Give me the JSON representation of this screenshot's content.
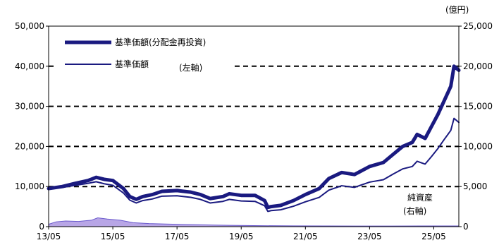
{
  "chart_data": {
    "type": "line",
    "grid": true,
    "legend": "top-left",
    "y_left": {
      "ylim": [
        0,
        50000
      ],
      "ticks": [
        "0",
        "10,000",
        "20,000",
        "30,000",
        "40,000",
        "50,000"
      ],
      "note": "(左軸)"
    },
    "y_right": {
      "unit": "(億円)",
      "ylim": [
        0,
        25000
      ],
      "ticks": [
        "0",
        "5,000",
        "10,000",
        "15,000",
        "20,000",
        "25,000"
      ],
      "note_line1": "純資産",
      "note_line2": "(右軸)"
    },
    "x_ticks": [
      "13/05",
      "15/05",
      "17/05",
      "19/05",
      "21/05",
      "23/05",
      "25/05"
    ],
    "x_tick_values": [
      2013.37,
      2015.37,
      2017.37,
      2019.37,
      2021.37,
      2023.37,
      2025.37
    ],
    "xlim": [
      2013.37,
      2026.15
    ],
    "colors": {
      "line": "#1a1a80",
      "area_fill": "#b8a6e6",
      "area_stroke": "#6a5acd",
      "grid": "#000000"
    },
    "series": [
      {
        "name": "基準価額(分配金再投資)",
        "axis": "left",
        "x": [
          2013.37,
          2013.8,
          2014.2,
          2014.6,
          2014.85,
          2015.1,
          2015.37,
          2015.7,
          2015.9,
          2016.1,
          2016.3,
          2016.6,
          2016.9,
          2017.37,
          2017.8,
          2018.1,
          2018.4,
          2018.8,
          2019.0,
          2019.37,
          2019.8,
          2020.1,
          2020.2,
          2020.3,
          2020.6,
          2021.0,
          2021.37,
          2021.8,
          2022.1,
          2022.5,
          2022.9,
          2023.37,
          2023.8,
          2024.1,
          2024.4,
          2024.7,
          2024.85,
          2025.1,
          2025.3,
          2025.5,
          2025.7,
          2025.9,
          2026.0,
          2026.15
        ],
        "values": [
          9500,
          10000,
          10800,
          11500,
          12300,
          11800,
          11500,
          9500,
          7500,
          6800,
          7500,
          8000,
          8800,
          9000,
          8600,
          8000,
          7000,
          7500,
          8200,
          7800,
          7800,
          6500,
          4800,
          5000,
          5300,
          6500,
          8000,
          9500,
          12000,
          13500,
          13000,
          15000,
          16000,
          18000,
          20000,
          21000,
          23000,
          22000,
          25000,
          28000,
          31500,
          35000,
          40000,
          39000
        ]
      },
      {
        "name": "基準価額",
        "axis": "left",
        "x": [
          2013.37,
          2013.8,
          2014.2,
          2014.6,
          2014.85,
          2015.1,
          2015.37,
          2015.7,
          2015.9,
          2016.1,
          2016.3,
          2016.6,
          2016.9,
          2017.37,
          2017.8,
          2018.1,
          2018.4,
          2018.8,
          2019.0,
          2019.37,
          2019.8,
          2020.1,
          2020.2,
          2020.3,
          2020.6,
          2021.0,
          2021.37,
          2021.8,
          2022.1,
          2022.5,
          2022.9,
          2023.37,
          2023.8,
          2024.1,
          2024.4,
          2024.7,
          2024.85,
          2025.1,
          2025.3,
          2025.5,
          2025.7,
          2025.9,
          2026.0,
          2026.15
        ],
        "values": [
          9300,
          9800,
          10300,
          10800,
          11200,
          10700,
          10300,
          8400,
          6600,
          5900,
          6500,
          6900,
          7600,
          7700,
          7300,
          6800,
          5900,
          6300,
          6800,
          6400,
          6300,
          5200,
          3800,
          4000,
          4200,
          5100,
          6200,
          7300,
          9100,
          10200,
          9800,
          11100,
          11700,
          13100,
          14400,
          15000,
          16300,
          15600,
          17500,
          19500,
          21800,
          24000,
          27000,
          26000
        ]
      },
      {
        "name": "純資産",
        "axis": "right",
        "x": [
          2013.37,
          2013.6,
          2013.9,
          2014.3,
          2014.7,
          2014.9,
          2015.2,
          2015.6,
          2016.0,
          2016.5,
          2017.0,
          2017.5,
          2018.0,
          2018.5,
          2019.0,
          2019.5,
          2020.0,
          2021.0,
          2022.0,
          2023.0,
          2024.0,
          2025.0,
          2026.15
        ],
        "values": [
          300,
          600,
          700,
          650,
          800,
          1100,
          950,
          800,
          500,
          380,
          330,
          280,
          240,
          200,
          170,
          140,
          120,
          100,
          90,
          80,
          80,
          85,
          90
        ]
      }
    ]
  }
}
